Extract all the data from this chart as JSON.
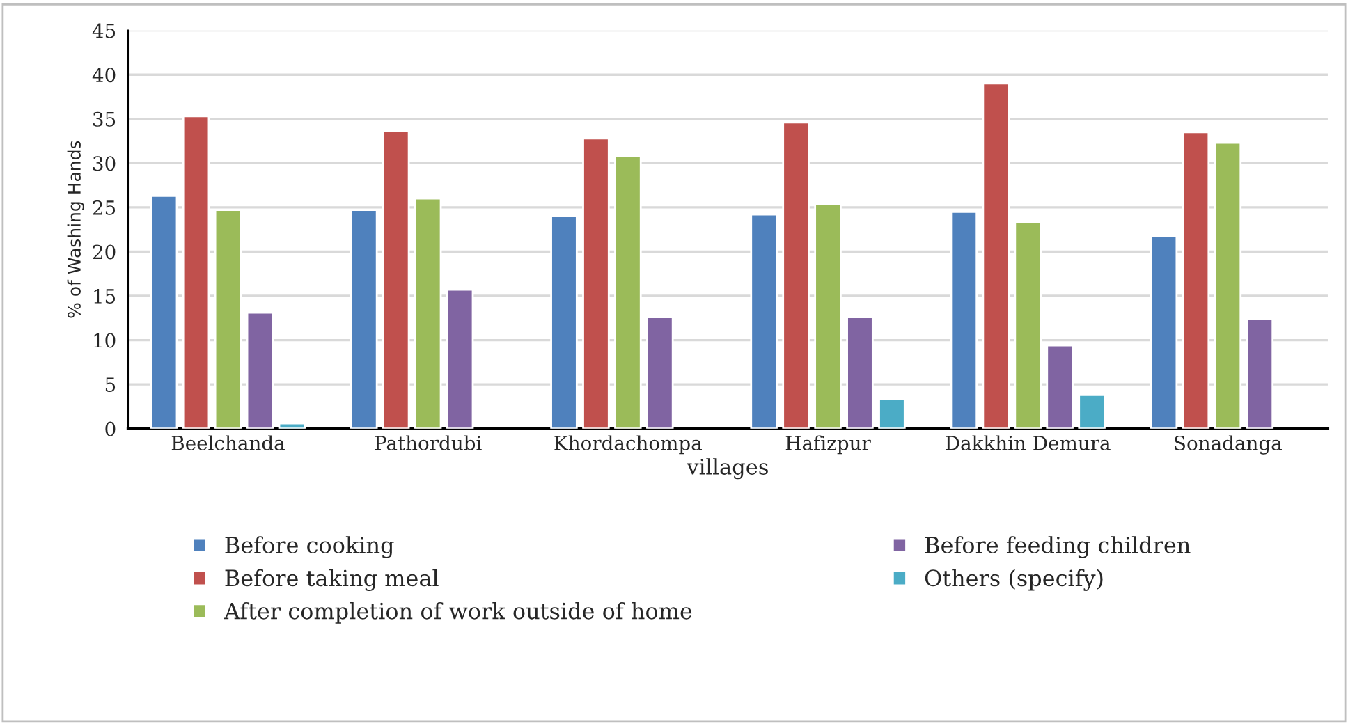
{
  "chart_data": {
    "type": "bar",
    "xlabel": "villages",
    "ylabel": "% of Washing Hands",
    "categories": [
      "Beelchanda",
      "Pathordubi",
      "Khordachompa",
      "Hafizpur",
      "Dakkhin Demura",
      "Sonadanga"
    ],
    "series": [
      {
        "name": "Before cooking",
        "color": "#4f81bd",
        "values": [
          26.3,
          24.7,
          24,
          24.2,
          24.5,
          21.8
        ]
      },
      {
        "name": "Before taking meal",
        "color": "#c0504d",
        "values": [
          35.3,
          33.6,
          32.8,
          34.6,
          39,
          33.5
        ]
      },
      {
        "name": "After completion of work outside of home",
        "color": "#9bbb59",
        "values": [
          24.7,
          26,
          30.8,
          25.4,
          23.3,
          32.3
        ]
      },
      {
        "name": "Before feeding children",
        "color": "#8064a2",
        "values": [
          13.1,
          15.7,
          12.6,
          12.6,
          9.4,
          12.4
        ]
      },
      {
        "name": "Others (specify)",
        "color": "#4bacc6",
        "values": [
          0.6,
          null,
          null,
          3.3,
          3.8,
          null
        ]
      }
    ],
    "ylim": [
      0,
      45
    ],
    "yticks": [
      0,
      5,
      10,
      15,
      20,
      25,
      30,
      35,
      40,
      45
    ],
    "grid": "y",
    "legend": "bottom"
  }
}
